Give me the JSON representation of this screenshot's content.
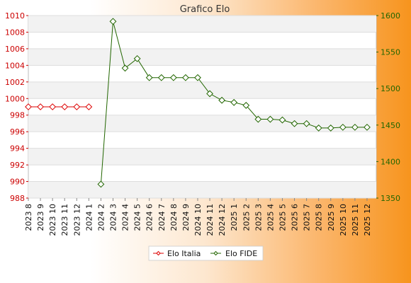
{
  "chart_data": {
    "type": "line",
    "title": "Grafico Elo",
    "categories": [
      "2023 8",
      "2023 9",
      "2023 10",
      "2023 11",
      "2023 12",
      "2024 1",
      "2024 2",
      "2024 3",
      "2024 4",
      "2024 5",
      "2024 6",
      "2024 7",
      "2024 8",
      "2024 9",
      "2024 10",
      "2024 11",
      "2024 12",
      "2025 1",
      "2025 2",
      "2025 3",
      "2025 4",
      "2025 5",
      "2025 6",
      "2025 7",
      "2025 8",
      "2025 9",
      "2025 10",
      "2025 11",
      "2025 12"
    ],
    "y_left": {
      "ylim": [
        988,
        1010
      ],
      "ticks": [
        988,
        990,
        992,
        994,
        996,
        998,
        1000,
        1002,
        1004,
        1006,
        1008,
        1010
      ],
      "color": "#cc0000"
    },
    "y_right": {
      "ylim": [
        1350,
        1600
      ],
      "ticks": [
        1350,
        1400,
        1450,
        1500,
        1550,
        1600
      ],
      "color": "#226600"
    },
    "grid": true,
    "legend_position": "bottom",
    "series": [
      {
        "name": "Elo Italia",
        "axis": "left",
        "color": "#dd0000",
        "marker": "diamond",
        "values": [
          999,
          999,
          999,
          999,
          999,
          999,
          null,
          null,
          null,
          null,
          null,
          null,
          null,
          null,
          null,
          null,
          null,
          null,
          null,
          null,
          null,
          null,
          null,
          null,
          null,
          null,
          null,
          null,
          null
        ]
      },
      {
        "name": "Elo FIDE",
        "axis": "right",
        "color": "#226600",
        "marker": "diamond",
        "values": [
          null,
          null,
          null,
          null,
          null,
          null,
          1369,
          1592,
          1528,
          1541,
          1515,
          1515,
          1515,
          1515,
          1515,
          1493,
          1484,
          1481,
          1477,
          1458,
          1458,
          1457,
          1452,
          1452,
          1446,
          1446,
          1447,
          1447,
          1447
        ]
      }
    ]
  }
}
